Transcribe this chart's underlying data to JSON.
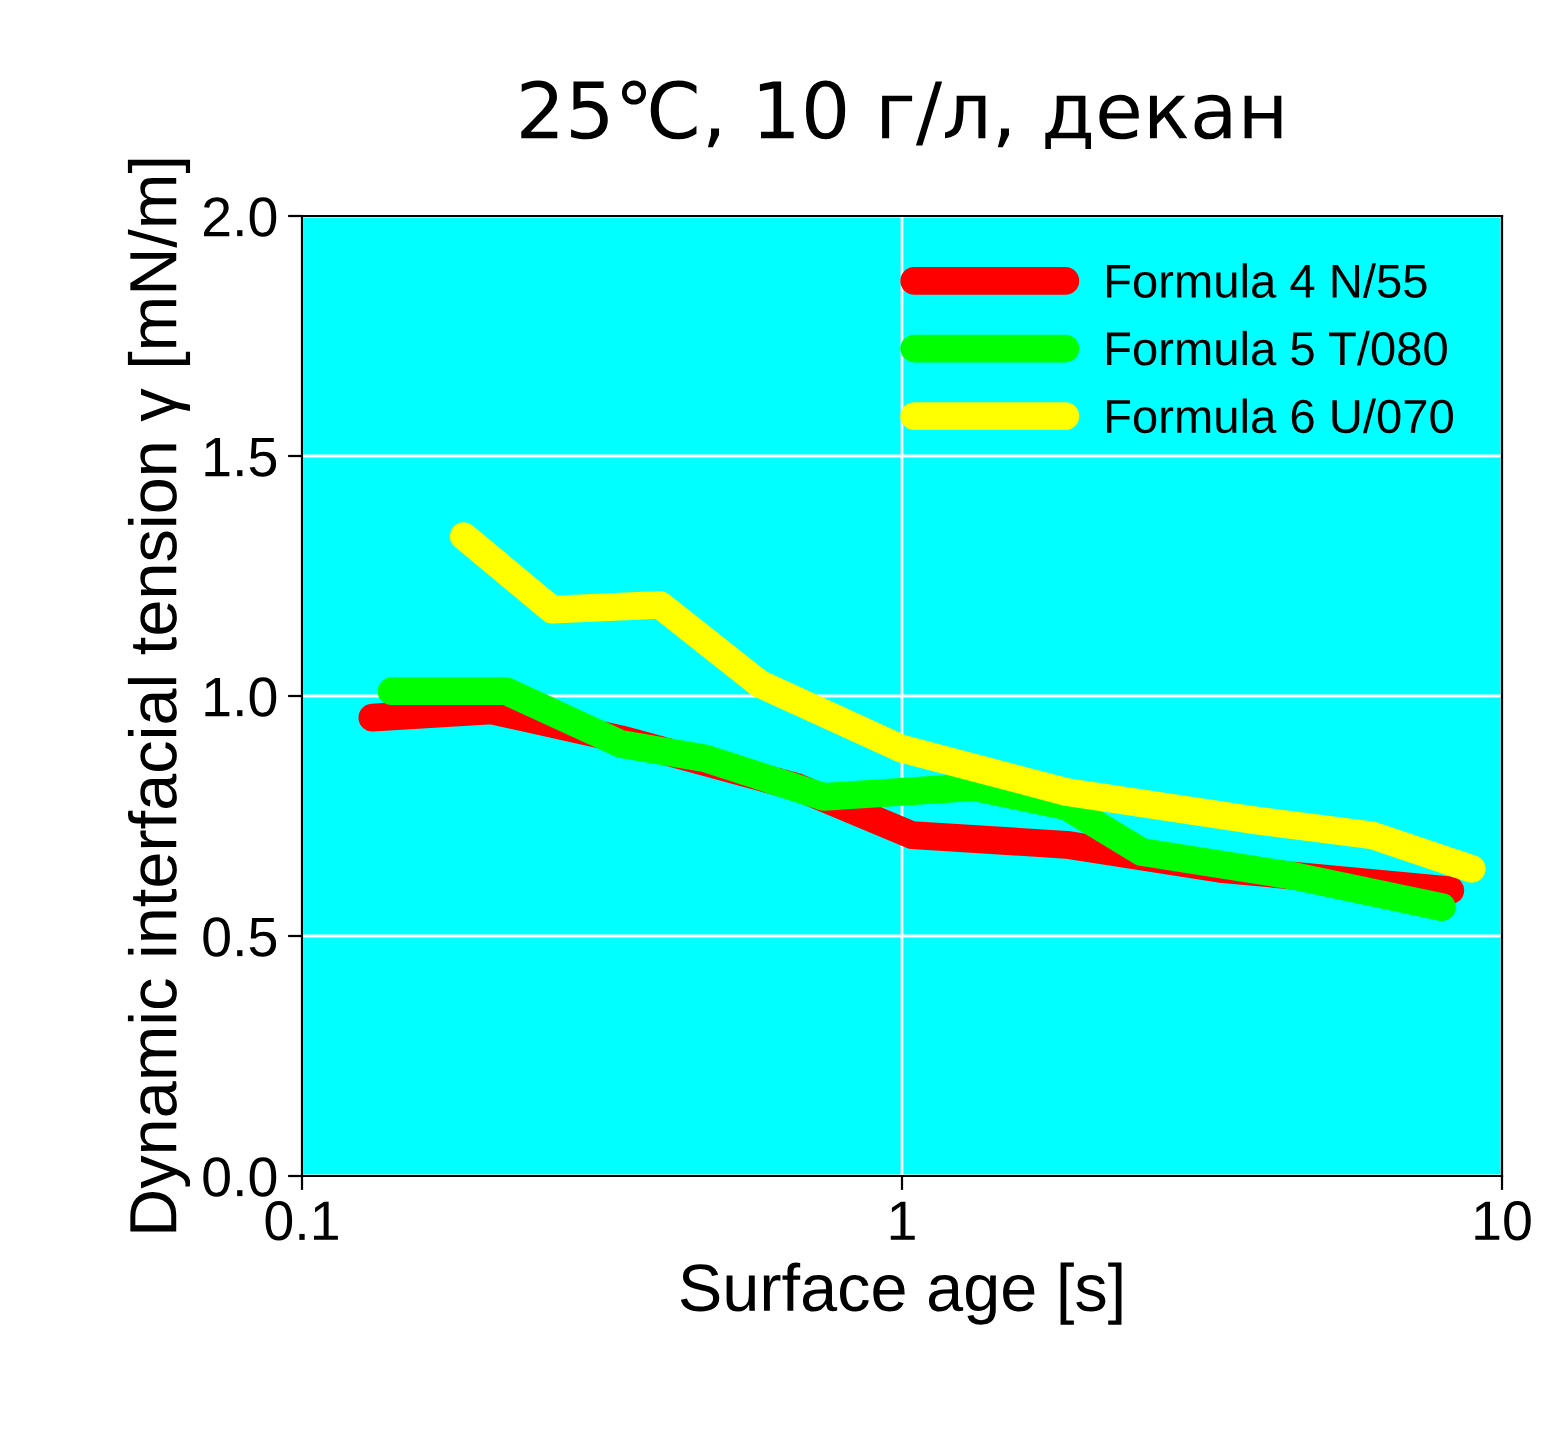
{
  "chart_data": {
    "type": "line",
    "title": "25℃, 10 г/л, декан",
    "xlabel": "Surface age [s]",
    "ylabel": "Dynamic interfacial tension γ [mN/m]",
    "log": "x",
    "xlim": [
      0.1,
      10
    ],
    "xticks": [
      0.1,
      1,
      10
    ],
    "ylim": [
      0,
      2
    ],
    "yticks": [
      {
        "value": 0,
        "label": "0.0"
      },
      {
        "value": 0.5,
        "label": "0.5"
      },
      {
        "value": 1,
        "label": "1.0"
      },
      {
        "value": 1.5,
        "label": "1.5"
      },
      {
        "value": 2,
        "label": "2.0"
      }
    ],
    "grid": true,
    "legend": "top right",
    "line_style": "solid",
    "series": [
      {
        "name": "Formula 4 N/55",
        "color": "#ff0000",
        "x": [
          0.131,
          0.207,
          0.34,
          0.67,
          1.04,
          1.88,
          3.39,
          8.2
        ],
        "values": [
          0.955,
          0.97,
          0.91,
          0.81,
          0.71,
          0.69,
          0.64,
          0.595
        ]
      },
      {
        "name": "Formula 5 T/080",
        "color": "#00ff00",
        "x": [
          0.141,
          0.219,
          0.34,
          0.47,
          0.74,
          1.32,
          1.88,
          2.51,
          4.5,
          7.94
        ],
        "values": [
          1.01,
          1.01,
          0.9,
          0.87,
          0.79,
          0.81,
          0.77,
          0.675,
          0.625,
          0.56
        ]
      },
      {
        "name": "Formula 6 U/070",
        "color": "#ffff00",
        "x": [
          0.186,
          0.261,
          0.395,
          0.58,
          1.0,
          1.88,
          3.92,
          6.06,
          8.9
        ],
        "values": [
          1.333,
          1.18,
          1.19,
          1.025,
          0.89,
          0.8,
          0.74,
          0.71,
          0.64
        ]
      }
    ]
  }
}
